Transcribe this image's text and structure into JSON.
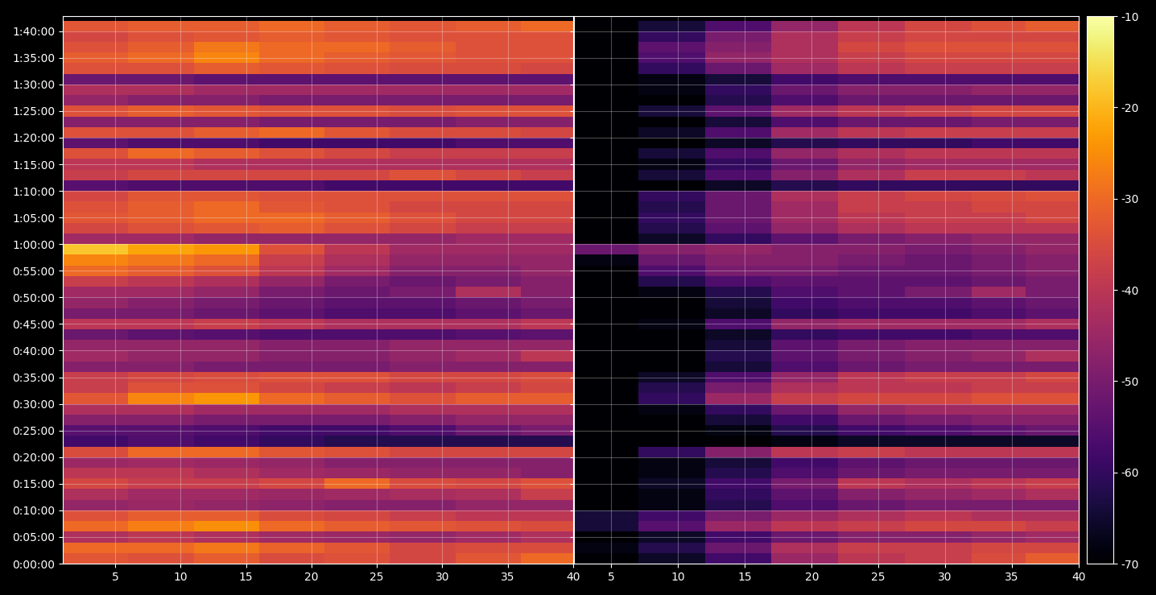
{
  "chart_data": {
    "type": "heatmap",
    "grid": true,
    "ylim": [
      0,
      6170
    ],
    "yticks": [
      {
        "value": 0,
        "label": "0:00:00"
      },
      {
        "value": 300,
        "label": "0:05:00"
      },
      {
        "value": 600,
        "label": "0:10:00"
      },
      {
        "value": 900,
        "label": "0:15:00"
      },
      {
        "value": 1200,
        "label": "0:20:00"
      },
      {
        "value": 1500,
        "label": "0:25:00"
      },
      {
        "value": 1800,
        "label": "0:30:00"
      },
      {
        "value": 2100,
        "label": "0:35:00"
      },
      {
        "value": 2400,
        "label": "0:40:00"
      },
      {
        "value": 2700,
        "label": "0:45:00"
      },
      {
        "value": 3000,
        "label": "0:50:00"
      },
      {
        "value": 3300,
        "label": "0:55:00"
      },
      {
        "value": 3600,
        "label": "1:00:00"
      },
      {
        "value": 3900,
        "label": "1:05:00"
      },
      {
        "value": 4200,
        "label": "1:10:00"
      },
      {
        "value": 4500,
        "label": "1:15:00"
      },
      {
        "value": 4800,
        "label": "1:20:00"
      },
      {
        "value": 5100,
        "label": "1:25:00"
      },
      {
        "value": 5400,
        "label": "1:30:00"
      },
      {
        "value": 5700,
        "label": "1:35:00"
      },
      {
        "value": 6000,
        "label": "1:40:00"
      }
    ],
    "y_bins": [
      0,
      120,
      240,
      360,
      480,
      600,
      720,
      840,
      960,
      1080,
      1200,
      1320,
      1440,
      1560,
      1680,
      1800,
      1920,
      2040,
      2160,
      2280,
      2400,
      2520,
      2640,
      2760,
      2880,
      3000,
      3120,
      3240,
      3360,
      3480,
      3600,
      3720,
      3840,
      3960,
      4080,
      4200,
      4320,
      4440,
      4560,
      4680,
      4800,
      4920,
      5040,
      5160,
      5280,
      5400,
      5520,
      5640,
      5760,
      5880,
      6000,
      6120,
      6240
    ],
    "colorbar": {
      "range": [
        -70,
        -10
      ],
      "ticks": [
        -70,
        -60,
        -50,
        -40,
        -30,
        -20,
        -10
      ]
    },
    "panels": [
      {
        "xlim": [
          1,
          40
        ],
        "xticks": [
          5,
          10,
          15,
          20,
          25,
          30,
          35,
          40
        ],
        "x_bins": [
          1,
          6,
          11,
          16,
          21,
          26,
          31,
          36,
          40
        ],
        "cells": [
          [
            -33,
            -34,
            -32,
            -35,
            -34,
            -36,
            -33,
            -30
          ],
          [
            -30,
            -30,
            -28,
            -31,
            -33,
            -36,
            -35,
            -35
          ],
          [
            -42,
            -40,
            -42,
            -44,
            -45,
            -46,
            -44,
            -42
          ],
          [
            -30,
            -27,
            -25,
            -30,
            -32,
            -33,
            -34,
            -35
          ],
          [
            -34,
            -32,
            -32,
            -35,
            -36,
            -38,
            -40,
            -40
          ],
          [
            -46,
            -45,
            -46,
            -47,
            -48,
            -48,
            -46,
            -46
          ],
          [
            -42,
            -44,
            -44,
            -45,
            -44,
            -43,
            -42,
            -38
          ],
          [
            -36,
            -38,
            -38,
            -36,
            -30,
            -35,
            -36,
            -34
          ],
          [
            -40,
            -40,
            -42,
            -44,
            -45,
            -46,
            -46,
            -48
          ],
          [
            -45,
            -44,
            -45,
            -46,
            -48,
            -48,
            -48,
            -48
          ],
          [
            -35,
            -30,
            -30,
            -33,
            -34,
            -36,
            -36,
            -36
          ],
          [
            -58,
            -56,
            -58,
            -60,
            -62,
            -62,
            -62,
            -62
          ],
          [
            -55,
            -55,
            -56,
            -58,
            -58,
            -56,
            -52,
            -50
          ],
          [
            -48,
            -48,
            -50,
            -50,
            -50,
            -48,
            -46,
            -46
          ],
          [
            -42,
            -42,
            -44,
            -44,
            -44,
            -42,
            -42,
            -42
          ],
          [
            -33,
            -26,
            -24,
            -30,
            -32,
            -34,
            -32,
            -32
          ],
          [
            -38,
            -34,
            -34,
            -36,
            -38,
            -40,
            -38,
            -36
          ],
          [
            -38,
            -36,
            -35,
            -34,
            -34,
            -36,
            -36,
            -35
          ],
          [
            -48,
            -48,
            -50,
            -50,
            -50,
            -48,
            -48,
            -48
          ],
          [
            -44,
            -46,
            -46,
            -48,
            -48,
            -46,
            -44,
            -40
          ],
          [
            -46,
            -46,
            -46,
            -48,
            -48,
            -46,
            -46,
            -46
          ],
          [
            -52,
            -54,
            -55,
            -56,
            -56,
            -56,
            -55,
            -54
          ],
          [
            -40,
            -40,
            -38,
            -40,
            -42,
            -42,
            -42,
            -40
          ],
          [
            -50,
            -50,
            -52,
            -54,
            -56,
            -56,
            -54,
            -52
          ],
          [
            -46,
            -48,
            -50,
            -52,
            -54,
            -54,
            -52,
            -50
          ],
          [
            -44,
            -44,
            -46,
            -50,
            -52,
            -50,
            -42,
            -48
          ],
          [
            -38,
            -40,
            -42,
            -46,
            -50,
            -52,
            -50,
            -48
          ],
          [
            -30,
            -32,
            -34,
            -40,
            -44,
            -48,
            -48,
            -46
          ],
          [
            -26,
            -28,
            -30,
            -38,
            -42,
            -46,
            -46,
            -46
          ],
          [
            -18,
            -22,
            -24,
            -34,
            -40,
            -44,
            -44,
            -44
          ],
          [
            -44,
            -44,
            -46,
            -46,
            -46,
            -46,
            -44,
            -44
          ],
          [
            -36,
            -34,
            -33,
            -32,
            -34,
            -36,
            -38,
            -38
          ],
          [
            -33,
            -32,
            -30,
            -30,
            -32,
            -34,
            -36,
            -36
          ],
          [
            -34,
            -32,
            -30,
            -33,
            -34,
            -36,
            -36,
            -36
          ],
          [
            -36,
            -33,
            -33,
            -34,
            -34,
            -34,
            -34,
            -34
          ],
          [
            -55,
            -56,
            -56,
            -56,
            -58,
            -58,
            -58,
            -58
          ],
          [
            -38,
            -36,
            -36,
            -36,
            -36,
            -34,
            -36,
            -38
          ],
          [
            -40,
            -40,
            -42,
            -42,
            -42,
            -42,
            -42,
            -42
          ],
          [
            -34,
            -30,
            -32,
            -34,
            -36,
            -38,
            -38,
            -38
          ],
          [
            -54,
            -56,
            -56,
            -58,
            -58,
            -58,
            -56,
            -56
          ],
          [
            -34,
            -34,
            -32,
            -30,
            -33,
            -35,
            -35,
            -36
          ],
          [
            -48,
            -48,
            -48,
            -50,
            -50,
            -50,
            -48,
            -48
          ],
          [
            -34,
            -32,
            -33,
            -34,
            -34,
            -35,
            -34,
            -34
          ],
          [
            -46,
            -48,
            -48,
            -50,
            -50,
            -50,
            -50,
            -50
          ],
          [
            -42,
            -42,
            -44,
            -44,
            -44,
            -44,
            -44,
            -44
          ],
          [
            -52,
            -52,
            -54,
            -54,
            -54,
            -54,
            -54,
            -54
          ],
          [
            -34,
            -34,
            -32,
            -33,
            -34,
            -35,
            -35,
            -36
          ],
          [
            -32,
            -30,
            -26,
            -30,
            -32,
            -33,
            -34,
            -34
          ],
          [
            -34,
            -32,
            -28,
            -30,
            -30,
            -32,
            -34,
            -34
          ],
          [
            -36,
            -34,
            -33,
            -32,
            -33,
            -34,
            -34,
            -34
          ],
          [
            -33,
            -32,
            -32,
            -30,
            -32,
            -33,
            -32,
            -30
          ],
          [
            -70,
            -70,
            -70,
            -70,
            -70,
            -70,
            -70,
            -70
          ]
        ]
      },
      {
        "xlim": [
          2.2,
          40
        ],
        "xticks": [
          5,
          10,
          15,
          20,
          25,
          30,
          35,
          40
        ],
        "x_bins": [
          2,
          7,
          12,
          17,
          22,
          27,
          32,
          36,
          40
        ],
        "cells": [
          [
            -70,
            -66,
            -58,
            -45,
            -40,
            -38,
            -35,
            -32
          ],
          [
            -68,
            -62,
            -52,
            -42,
            -38,
            -38,
            -36,
            -36
          ],
          [
            -70,
            -66,
            -58,
            -52,
            -48,
            -48,
            -46,
            -44
          ],
          [
            -64,
            -55,
            -45,
            -40,
            -38,
            -36,
            -36,
            -38
          ],
          [
            -64,
            -58,
            -50,
            -45,
            -42,
            -40,
            -42,
            -42
          ],
          [
            -70,
            -68,
            -62,
            -56,
            -52,
            -50,
            -50,
            -50
          ],
          [
            -70,
            -68,
            -60,
            -54,
            -48,
            -46,
            -44,
            -42
          ],
          [
            -70,
            -66,
            -58,
            -50,
            -40,
            -42,
            -40,
            -38
          ],
          [
            -70,
            -68,
            -62,
            -56,
            -52,
            -50,
            -50,
            -50
          ],
          [
            -70,
            -68,
            -64,
            -58,
            -54,
            -52,
            -52,
            -52
          ],
          [
            -70,
            -60,
            -48,
            -40,
            -38,
            -40,
            -40,
            -40
          ],
          [
            -70,
            -70,
            -70,
            -68,
            -66,
            -66,
            -66,
            -66
          ],
          [
            -70,
            -70,
            -68,
            -62,
            -58,
            -56,
            -54,
            -52
          ],
          [
            -70,
            -70,
            -64,
            -58,
            -52,
            -50,
            -48,
            -48
          ],
          [
            -70,
            -68,
            -60,
            -52,
            -46,
            -44,
            -44,
            -44
          ],
          [
            -70,
            -60,
            -45,
            -38,
            -36,
            -36,
            -34,
            -34
          ],
          [
            -70,
            -62,
            -50,
            -42,
            -40,
            -40,
            -38,
            -38
          ],
          [
            -70,
            -66,
            -56,
            -46,
            -40,
            -38,
            -38,
            -36
          ],
          [
            -70,
            -70,
            -64,
            -56,
            -52,
            -50,
            -50,
            -50
          ],
          [
            -70,
            -70,
            -62,
            -54,
            -50,
            -48,
            -46,
            -42
          ],
          [
            -70,
            -70,
            -64,
            -54,
            -50,
            -48,
            -48,
            -48
          ],
          [
            -70,
            -70,
            -66,
            -60,
            -58,
            -58,
            -56,
            -56
          ],
          [
            -70,
            -68,
            -56,
            -46,
            -44,
            -44,
            -44,
            -42
          ],
          [
            -70,
            -70,
            -66,
            -60,
            -58,
            -58,
            -56,
            -54
          ],
          [
            -70,
            -70,
            -64,
            -58,
            -56,
            -56,
            -54,
            -52
          ],
          [
            -70,
            -68,
            -62,
            -56,
            -54,
            -50,
            -44,
            -50
          ],
          [
            -70,
            -62,
            -56,
            -54,
            -54,
            -54,
            -52,
            -50
          ],
          [
            -70,
            -56,
            -50,
            -50,
            -52,
            -52,
            -50,
            -48
          ],
          [
            -68,
            -52,
            -48,
            -48,
            -50,
            -52,
            -50,
            -48
          ],
          [
            -52,
            -48,
            -46,
            -48,
            -48,
            -50,
            -48,
            -46
          ],
          [
            -70,
            -66,
            -60,
            -54,
            -50,
            -48,
            -46,
            -46
          ],
          [
            -70,
            -62,
            -54,
            -46,
            -42,
            -40,
            -40,
            -40
          ],
          [
            -70,
            -60,
            -52,
            -44,
            -40,
            -38,
            -38,
            -36
          ],
          [
            -70,
            -62,
            -52,
            -44,
            -38,
            -38,
            -36,
            -36
          ],
          [
            -70,
            -60,
            -52,
            -42,
            -38,
            -36,
            -35,
            -34
          ],
          [
            -70,
            -70,
            -66,
            -62,
            -60,
            -60,
            -60,
            -60
          ],
          [
            -70,
            -64,
            -56,
            -48,
            -42,
            -38,
            -38,
            -40
          ],
          [
            -70,
            -68,
            -60,
            -52,
            -46,
            -44,
            -44,
            -44
          ],
          [
            -70,
            -64,
            -56,
            -46,
            -42,
            -40,
            -40,
            -40
          ],
          [
            -70,
            -70,
            -66,
            -62,
            -60,
            -60,
            -58,
            -58
          ],
          [
            -70,
            -66,
            -56,
            -44,
            -40,
            -38,
            -38,
            -38
          ],
          [
            -70,
            -70,
            -64,
            -56,
            -52,
            -52,
            -50,
            -50
          ],
          [
            -70,
            -64,
            -54,
            -44,
            -40,
            -38,
            -36,
            -36
          ],
          [
            -70,
            -70,
            -62,
            -56,
            -52,
            -52,
            -52,
            -52
          ],
          [
            -70,
            -68,
            -60,
            -52,
            -48,
            -48,
            -46,
            -46
          ],
          [
            -70,
            -68,
            -64,
            -58,
            -56,
            -56,
            -56,
            -56
          ],
          [
            -70,
            -60,
            -52,
            -44,
            -40,
            -38,
            -38,
            -38
          ],
          [
            -70,
            -56,
            -46,
            -42,
            -38,
            -36,
            -36,
            -36
          ],
          [
            -70,
            -54,
            -48,
            -42,
            -36,
            -34,
            -34,
            -34
          ],
          [
            -70,
            -60,
            -50,
            -42,
            -38,
            -36,
            -36,
            -36
          ],
          [
            -70,
            -64,
            -56,
            -46,
            -40,
            -36,
            -34,
            -32
          ],
          [
            -70,
            -70,
            -70,
            -70,
            -70,
            -70,
            -70,
            -70
          ]
        ]
      }
    ]
  }
}
